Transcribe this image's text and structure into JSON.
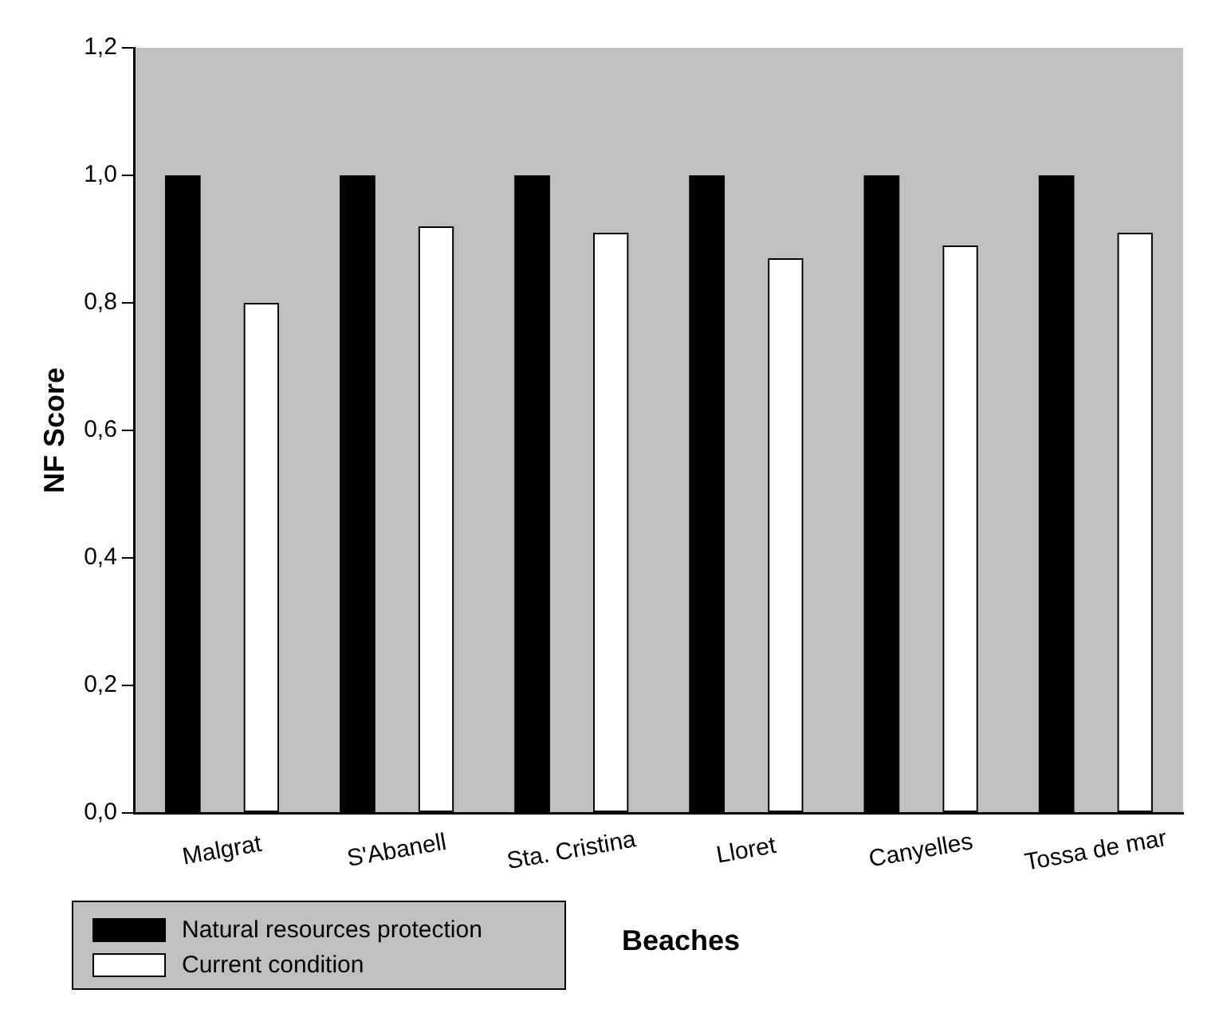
{
  "chart_data": {
    "type": "bar",
    "xlabel": "Beaches",
    "ylabel": "NF Score",
    "categories": [
      "Malgrat",
      "S'Abanell",
      "Sta. Cristina",
      "Lloret",
      "Canyelles",
      "Tossa de mar"
    ],
    "series": [
      {
        "name": "Natural resources protection",
        "color": "#000000",
        "values": [
          1,
          1,
          1,
          1,
          1,
          1
        ]
      },
      {
        "name": "Current condition",
        "color": "#ffffff",
        "values": [
          0.8,
          0.92,
          0.91,
          0.87,
          0.89,
          0.91
        ]
      }
    ],
    "ylim": [
      0,
      1.2
    ],
    "yticks": [
      {
        "value": 0,
        "label": "0,0"
      },
      {
        "value": 0.2,
        "label": "0,2"
      },
      {
        "value": 0.4,
        "label": "0,4"
      },
      {
        "value": 0.6,
        "label": "0,6"
      },
      {
        "value": 0.8,
        "label": "0,8"
      },
      {
        "value": 1,
        "label": "1,0"
      },
      {
        "value": 1.2,
        "label": "1,2"
      }
    ],
    "grid": false,
    "legend": "bottom left"
  }
}
